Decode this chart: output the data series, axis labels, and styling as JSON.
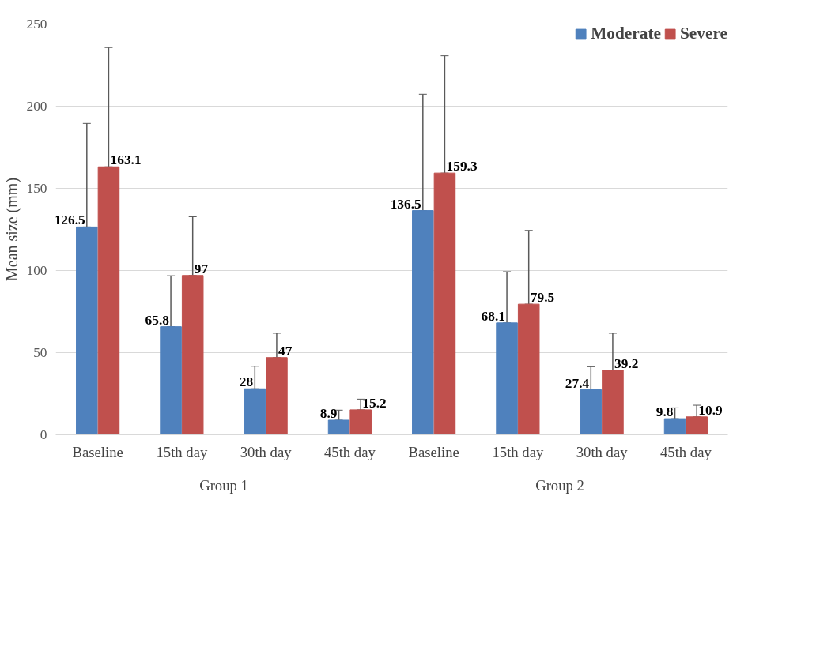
{
  "chart_data": {
    "type": "bar",
    "ylabel": "Mean size (mm)",
    "categories": [
      "Baseline",
      "15th day",
      "30th day",
      "45th day",
      "Baseline",
      "15th day",
      "30th day",
      "45th day"
    ],
    "annotations": [
      "Group 1",
      "Group 2"
    ],
    "series": [
      {
        "name": "Moderate",
        "color": "#4f81bd",
        "values": [
          126.5,
          65.8,
          28,
          8.9,
          136.5,
          68.1,
          27.4,
          9.8
        ],
        "errors": [
          [
            126.5,
            189.5
          ],
          [
            65.8,
            96.8
          ],
          [
            28,
            41.7
          ],
          [
            8.9,
            15.0
          ],
          [
            136.5,
            207.3
          ],
          [
            68.1,
            99.3
          ],
          [
            27.4,
            41.4
          ],
          [
            9.8,
            16.4
          ]
        ]
      },
      {
        "name": "Severe",
        "color": "#c0504d",
        "values": [
          163.1,
          97,
          47,
          15.2,
          159.3,
          79.5,
          39.2,
          10.9
        ],
        "errors": [
          [
            163.1,
            235.7
          ],
          [
            97,
            132.7
          ],
          [
            47,
            61.8
          ],
          [
            15.2,
            21.7
          ],
          [
            159.3,
            230.7
          ],
          [
            79.5,
            124.4
          ],
          [
            39.2,
            61.8
          ],
          [
            10.9,
            18.0
          ]
        ]
      }
    ],
    "ylim": [
      0,
      250
    ],
    "yticks": [
      0,
      50,
      100,
      150,
      200,
      250
    ],
    "grid": "y",
    "legend": "top right",
    "data_labels": true
  }
}
